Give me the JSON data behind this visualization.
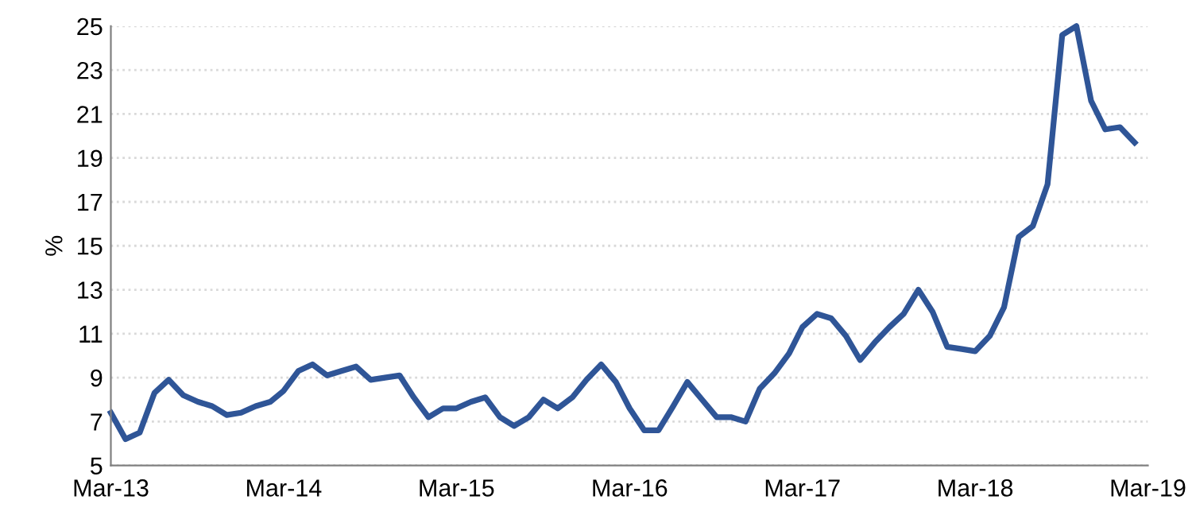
{
  "chart_data": {
    "type": "line",
    "ylabel": "%",
    "x": [
      "2013-03",
      "2013-04",
      "2013-05",
      "2013-06",
      "2013-07",
      "2013-08",
      "2013-09",
      "2013-10",
      "2013-11",
      "2013-12",
      "2014-01",
      "2014-02",
      "2014-03",
      "2014-04",
      "2014-05",
      "2014-06",
      "2014-07",
      "2014-08",
      "2014-09",
      "2014-10",
      "2014-11",
      "2014-12",
      "2015-01",
      "2015-02",
      "2015-03",
      "2015-04",
      "2015-05",
      "2015-06",
      "2015-07",
      "2015-08",
      "2015-09",
      "2015-10",
      "2015-11",
      "2015-12",
      "2016-01",
      "2016-02",
      "2016-03",
      "2016-04",
      "2016-05",
      "2016-06",
      "2016-07",
      "2016-08",
      "2016-09",
      "2016-10",
      "2016-11",
      "2016-12",
      "2017-01",
      "2017-02",
      "2017-03",
      "2017-04",
      "2017-05",
      "2017-06",
      "2017-07",
      "2017-08",
      "2017-09",
      "2017-10",
      "2017-11",
      "2017-12",
      "2018-01",
      "2018-02",
      "2018-03",
      "2018-04",
      "2018-05",
      "2018-06",
      "2018-07",
      "2018-08",
      "2018-09",
      "2018-10",
      "2018-11",
      "2018-12",
      "2019-01",
      "2019-02"
    ],
    "series": [
      {
        "color": "#2f5597",
        "values": [
          7.4,
          6.2,
          6.5,
          8.3,
          8.9,
          8.2,
          7.9,
          7.7,
          7.3,
          7.4,
          7.7,
          7.9,
          8.4,
          9.3,
          9.6,
          9.1,
          9.3,
          9.5,
          8.9,
          9.0,
          9.1,
          8.1,
          7.2,
          7.6,
          7.6,
          7.9,
          8.1,
          7.2,
          6.8,
          7.2,
          8.0,
          7.6,
          8.1,
          8.9,
          9.6,
          8.8,
          7.6,
          6.6,
          6.6,
          7.7,
          8.8,
          8.0,
          7.2,
          7.2,
          7.0,
          8.5,
          9.2,
          10.1,
          11.3,
          11.9,
          11.7,
          10.9,
          9.8,
          10.6,
          11.3,
          11.9,
          13.0,
          12.0,
          10.4,
          10.3,
          10.2,
          10.9,
          12.2,
          15.4,
          15.9,
          17.8,
          24.6,
          25.0,
          21.6,
          20.3,
          20.4,
          19.7
        ]
      }
    ],
    "xlim": [
      "2013-03",
      "2019-03"
    ],
    "xticks": [
      {
        "value": "2013-03",
        "label": "Mar-13"
      },
      {
        "value": "2014-03",
        "label": "Mar-14"
      },
      {
        "value": "2015-03",
        "label": "Mar-15"
      },
      {
        "value": "2016-03",
        "label": "Mar-16"
      },
      {
        "value": "2017-03",
        "label": "Mar-17"
      },
      {
        "value": "2018-03",
        "label": "Mar-18"
      },
      {
        "value": "2019-03",
        "label": "Mar-19"
      }
    ],
    "ylim": [
      5,
      25
    ],
    "yticks": [
      5,
      7,
      9,
      11,
      13,
      15,
      17,
      19,
      21,
      23,
      25
    ],
    "grid": "y",
    "line_style": "solid",
    "marker": "none",
    "legend": false
  }
}
